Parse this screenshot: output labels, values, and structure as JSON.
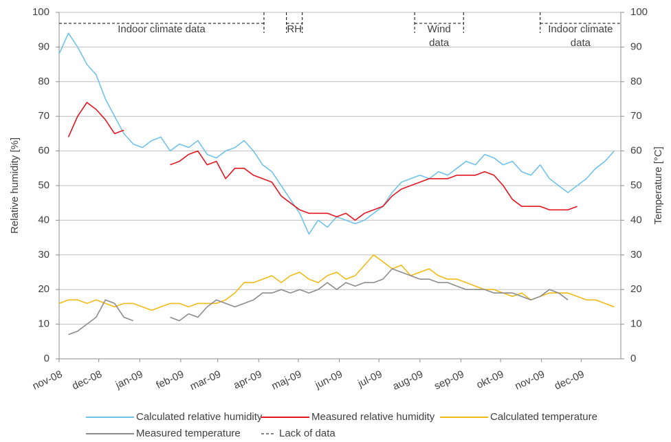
{
  "chart_data": {
    "type": "line",
    "y_label": "Relative humidity [%]",
    "y2_label": "Temperature [°C]",
    "xlim": [
      0,
      425
    ],
    "xticks": [
      {
        "value": 0,
        "label": "nov-08"
      },
      {
        "value": 30,
        "label": "dec-08"
      },
      {
        "value": 61,
        "label": "jan-09"
      },
      {
        "value": 92,
        "label": "feb-09"
      },
      {
        "value": 120,
        "label": "mar-09"
      },
      {
        "value": 151,
        "label": "apr-09"
      },
      {
        "value": 181,
        "label": "maj-09"
      },
      {
        "value": 212,
        "label": "jun-09"
      },
      {
        "value": 242,
        "label": "jul-09"
      },
      {
        "value": 273,
        "label": "aug-09"
      },
      {
        "value": 304,
        "label": "sep-09"
      },
      {
        "value": 334,
        "label": "okt-09"
      },
      {
        "value": 365,
        "label": "nov-09"
      },
      {
        "value": 395,
        "label": "dec-09"
      }
    ],
    "ylim": [
      0,
      100
    ],
    "yticks": [
      0,
      10,
      20,
      30,
      40,
      50,
      60,
      70,
      80,
      90,
      100
    ],
    "y2lim": [
      0,
      100
    ],
    "y2ticks": [
      0,
      10,
      20,
      30,
      40,
      50,
      60,
      70,
      80,
      90,
      100
    ],
    "grid": true,
    "legend": "bottom",
    "x": [
      0,
      7,
      14,
      21,
      28,
      35,
      42,
      49,
      56,
      63,
      70,
      77,
      84,
      91,
      98,
      105,
      112,
      119,
      126,
      133,
      140,
      147,
      154,
      161,
      168,
      175,
      182,
      189,
      196,
      203,
      210,
      217,
      224,
      231,
      238,
      245,
      252,
      259,
      266,
      273,
      280,
      287,
      294,
      301,
      308,
      315,
      322,
      329,
      336,
      343,
      350,
      357,
      364,
      371,
      378,
      385,
      392,
      399,
      406,
      413,
      420
    ],
    "series": [
      {
        "name": "Calculated relative humidity",
        "color": "#6fc3ea",
        "values": [
          88,
          94,
          90,
          85,
          82,
          75,
          70,
          65,
          62,
          61,
          63,
          64,
          60,
          62,
          61,
          63,
          59,
          58,
          60,
          61,
          63,
          60,
          56,
          54,
          50,
          46,
          42,
          36,
          40,
          38,
          41,
          40,
          39,
          40,
          42,
          44,
          48,
          51,
          52,
          53,
          52,
          54,
          53,
          55,
          57,
          56,
          59,
          58,
          56,
          57,
          54,
          53,
          56,
          52,
          50,
          48,
          50,
          52,
          55,
          57,
          60
        ]
      },
      {
        "name": "Measured relative humidity",
        "color": "#e3151f",
        "values": [
          null,
          64,
          70,
          74,
          72,
          69,
          65,
          66,
          null,
          null,
          null,
          null,
          56,
          57,
          59,
          60,
          56,
          57,
          52,
          55,
          55,
          53,
          52,
          51,
          47,
          45,
          43,
          42,
          42,
          42,
          41,
          42,
          40,
          42,
          43,
          44,
          47,
          49,
          50,
          51,
          52,
          52,
          52,
          53,
          53,
          53,
          54,
          53,
          50,
          46,
          44,
          44,
          44,
          43,
          43,
          43,
          44,
          null,
          null,
          null,
          null
        ]
      },
      {
        "name": "Calculated temperature",
        "color": "#f4b915",
        "axis": "y2",
        "values": [
          16,
          17,
          17,
          16,
          17,
          16,
          15,
          16,
          16,
          15,
          14,
          15,
          16,
          16,
          15,
          16,
          16,
          16,
          17,
          19,
          22,
          22,
          23,
          24,
          22,
          24,
          25,
          23,
          22,
          24,
          25,
          23,
          24,
          27,
          30,
          28,
          26,
          27,
          24,
          25,
          26,
          24,
          23,
          23,
          22,
          21,
          20,
          20,
          19,
          18,
          19,
          17,
          18,
          19,
          19,
          19,
          18,
          17,
          17,
          16,
          15
        ]
      },
      {
        "name": "Measured temperature",
        "color": "#8c8c8c",
        "axis": "y2",
        "values": [
          null,
          7,
          8,
          10,
          12,
          17,
          16,
          12,
          11,
          null,
          null,
          null,
          12,
          11,
          13,
          12,
          15,
          17,
          16,
          15,
          16,
          17,
          19,
          19,
          20,
          19,
          20,
          19,
          20,
          22,
          20,
          22,
          21,
          22,
          22,
          23,
          26,
          25,
          24,
          23,
          23,
          22,
          22,
          21,
          20,
          20,
          20,
          19,
          19,
          19,
          18,
          17,
          18,
          20,
          19,
          17,
          null,
          null,
          null,
          null,
          null
        ]
      }
    ],
    "gap_legend": "Lack of data",
    "gaps": [
      {
        "label": [
          "Indoor climate data"
        ],
        "start": 0,
        "end": 155
      },
      {
        "label": [
          "RH"
        ],
        "start": 172,
        "end": 184
      },
      {
        "label": [
          "Wind",
          "data"
        ],
        "start": 269,
        "end": 306
      },
      {
        "label": [
          "Indoor climate",
          "data"
        ],
        "start": 364,
        "end": 425
      }
    ]
  }
}
